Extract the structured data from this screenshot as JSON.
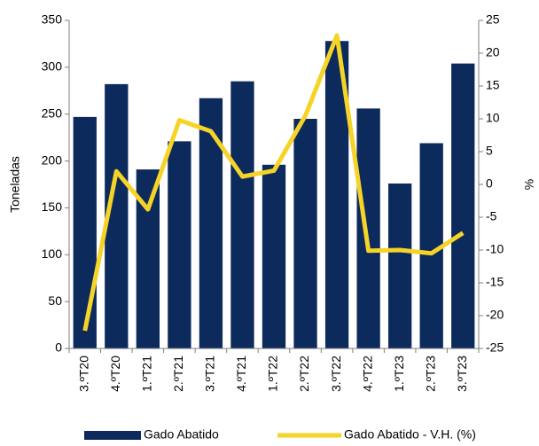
{
  "chart_data": {
    "type": "bar",
    "categories": [
      "3.ºT20",
      "4.ºT20",
      "1.ºT21",
      "2.ºT21",
      "3.ºT21",
      "4.ºT21",
      "1.ºT22",
      "2.ºT22",
      "3.ºT22",
      "4.ºT22",
      "1.ºT23",
      "2.ºT23",
      "3.ºT23"
    ],
    "series": [
      {
        "name": "Gado Abatido",
        "type": "bar",
        "color": "#0d2a5c",
        "values": [
          247,
          282,
          191,
          221,
          267,
          285,
          196,
          245,
          328,
          256,
          176,
          219,
          304
        ]
      },
      {
        "name": "Gado Abatido - V.H. (%)",
        "type": "line",
        "axis": "y2",
        "color": "#f5d327",
        "values": [
          -22.3,
          2.0,
          -3.8,
          9.8,
          8.1,
          1.2,
          2.1,
          10.5,
          22.7,
          -10.1,
          -10.0,
          -10.5,
          -7.4
        ]
      }
    ],
    "ylabel": "Toneladas",
    "y2label": "%",
    "ylim": [
      0,
      350
    ],
    "yticks": [
      0,
      50,
      100,
      150,
      200,
      250,
      300,
      350
    ],
    "y2lim": [
      -25,
      25
    ],
    "y2ticks": [
      -25,
      -20,
      -15,
      -10,
      -5,
      0,
      5,
      10,
      15,
      20,
      25
    ],
    "grid": false,
    "legend": "bottom"
  }
}
